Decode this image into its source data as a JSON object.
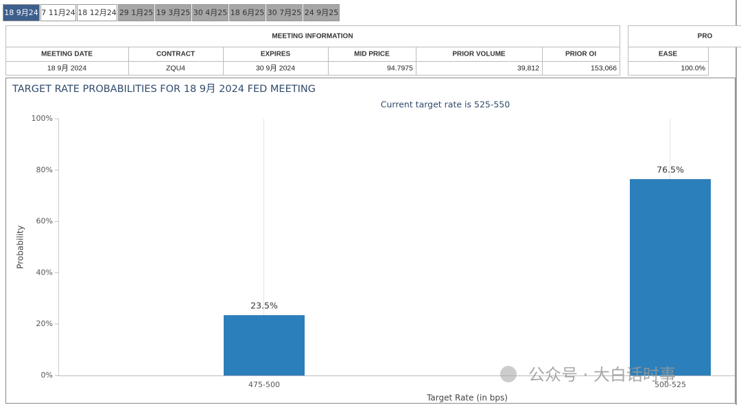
{
  "tabs": [
    {
      "label": "18 9月24",
      "state": "active"
    },
    {
      "label": "7 11月24",
      "state": "enabled"
    },
    {
      "label": "18 12月24",
      "state": "enabled"
    },
    {
      "label": "29 1月25",
      "state": "disabled"
    },
    {
      "label": "19 3月25",
      "state": "disabled"
    },
    {
      "label": "30 4月25",
      "state": "disabled"
    },
    {
      "label": "18 6月25",
      "state": "disabled"
    },
    {
      "label": "30 7月25",
      "state": "disabled"
    },
    {
      "label": "24 9月25",
      "state": "disabled"
    }
  ],
  "meeting_table": {
    "title": "MEETING INFORMATION",
    "headers": [
      "MEETING DATE",
      "CONTRACT",
      "EXPIRES",
      "MID PRICE",
      "PRIOR VOLUME",
      "PRIOR OI"
    ],
    "rows": [
      [
        "18 9月 2024",
        "ZQU4",
        "30 9月 2024",
        "94.7975",
        "39,812",
        "153,066"
      ]
    ]
  },
  "probability_table": {
    "title": "PRO",
    "headers": [
      "EASE"
    ],
    "rows": [
      [
        "100.0%"
      ]
    ]
  },
  "chart_data": {
    "type": "bar",
    "title": "TARGET RATE PROBABILITIES FOR 18 9月 2024 FED MEETING",
    "subtitle": "Current target rate is 525-550",
    "x_label": "Target Rate (in bps)",
    "y_label": "Probability",
    "categories": [
      "475-500",
      "500-525"
    ],
    "values": [
      23.5,
      76.5
    ],
    "value_labels": [
      "23.5%",
      "76.5%"
    ],
    "color": "#2b7fba",
    "ylim": [
      0,
      100
    ],
    "yticks": [
      {
        "value": 0,
        "label": "0%"
      },
      {
        "value": 20,
        "label": "20%"
      },
      {
        "value": 40,
        "label": "40%"
      },
      {
        "value": 60,
        "label": "60%"
      },
      {
        "value": 80,
        "label": "80%"
      },
      {
        "value": 100,
        "label": "100%"
      }
    ],
    "grid": true
  },
  "watermark": "公众号 · 大白话时事"
}
